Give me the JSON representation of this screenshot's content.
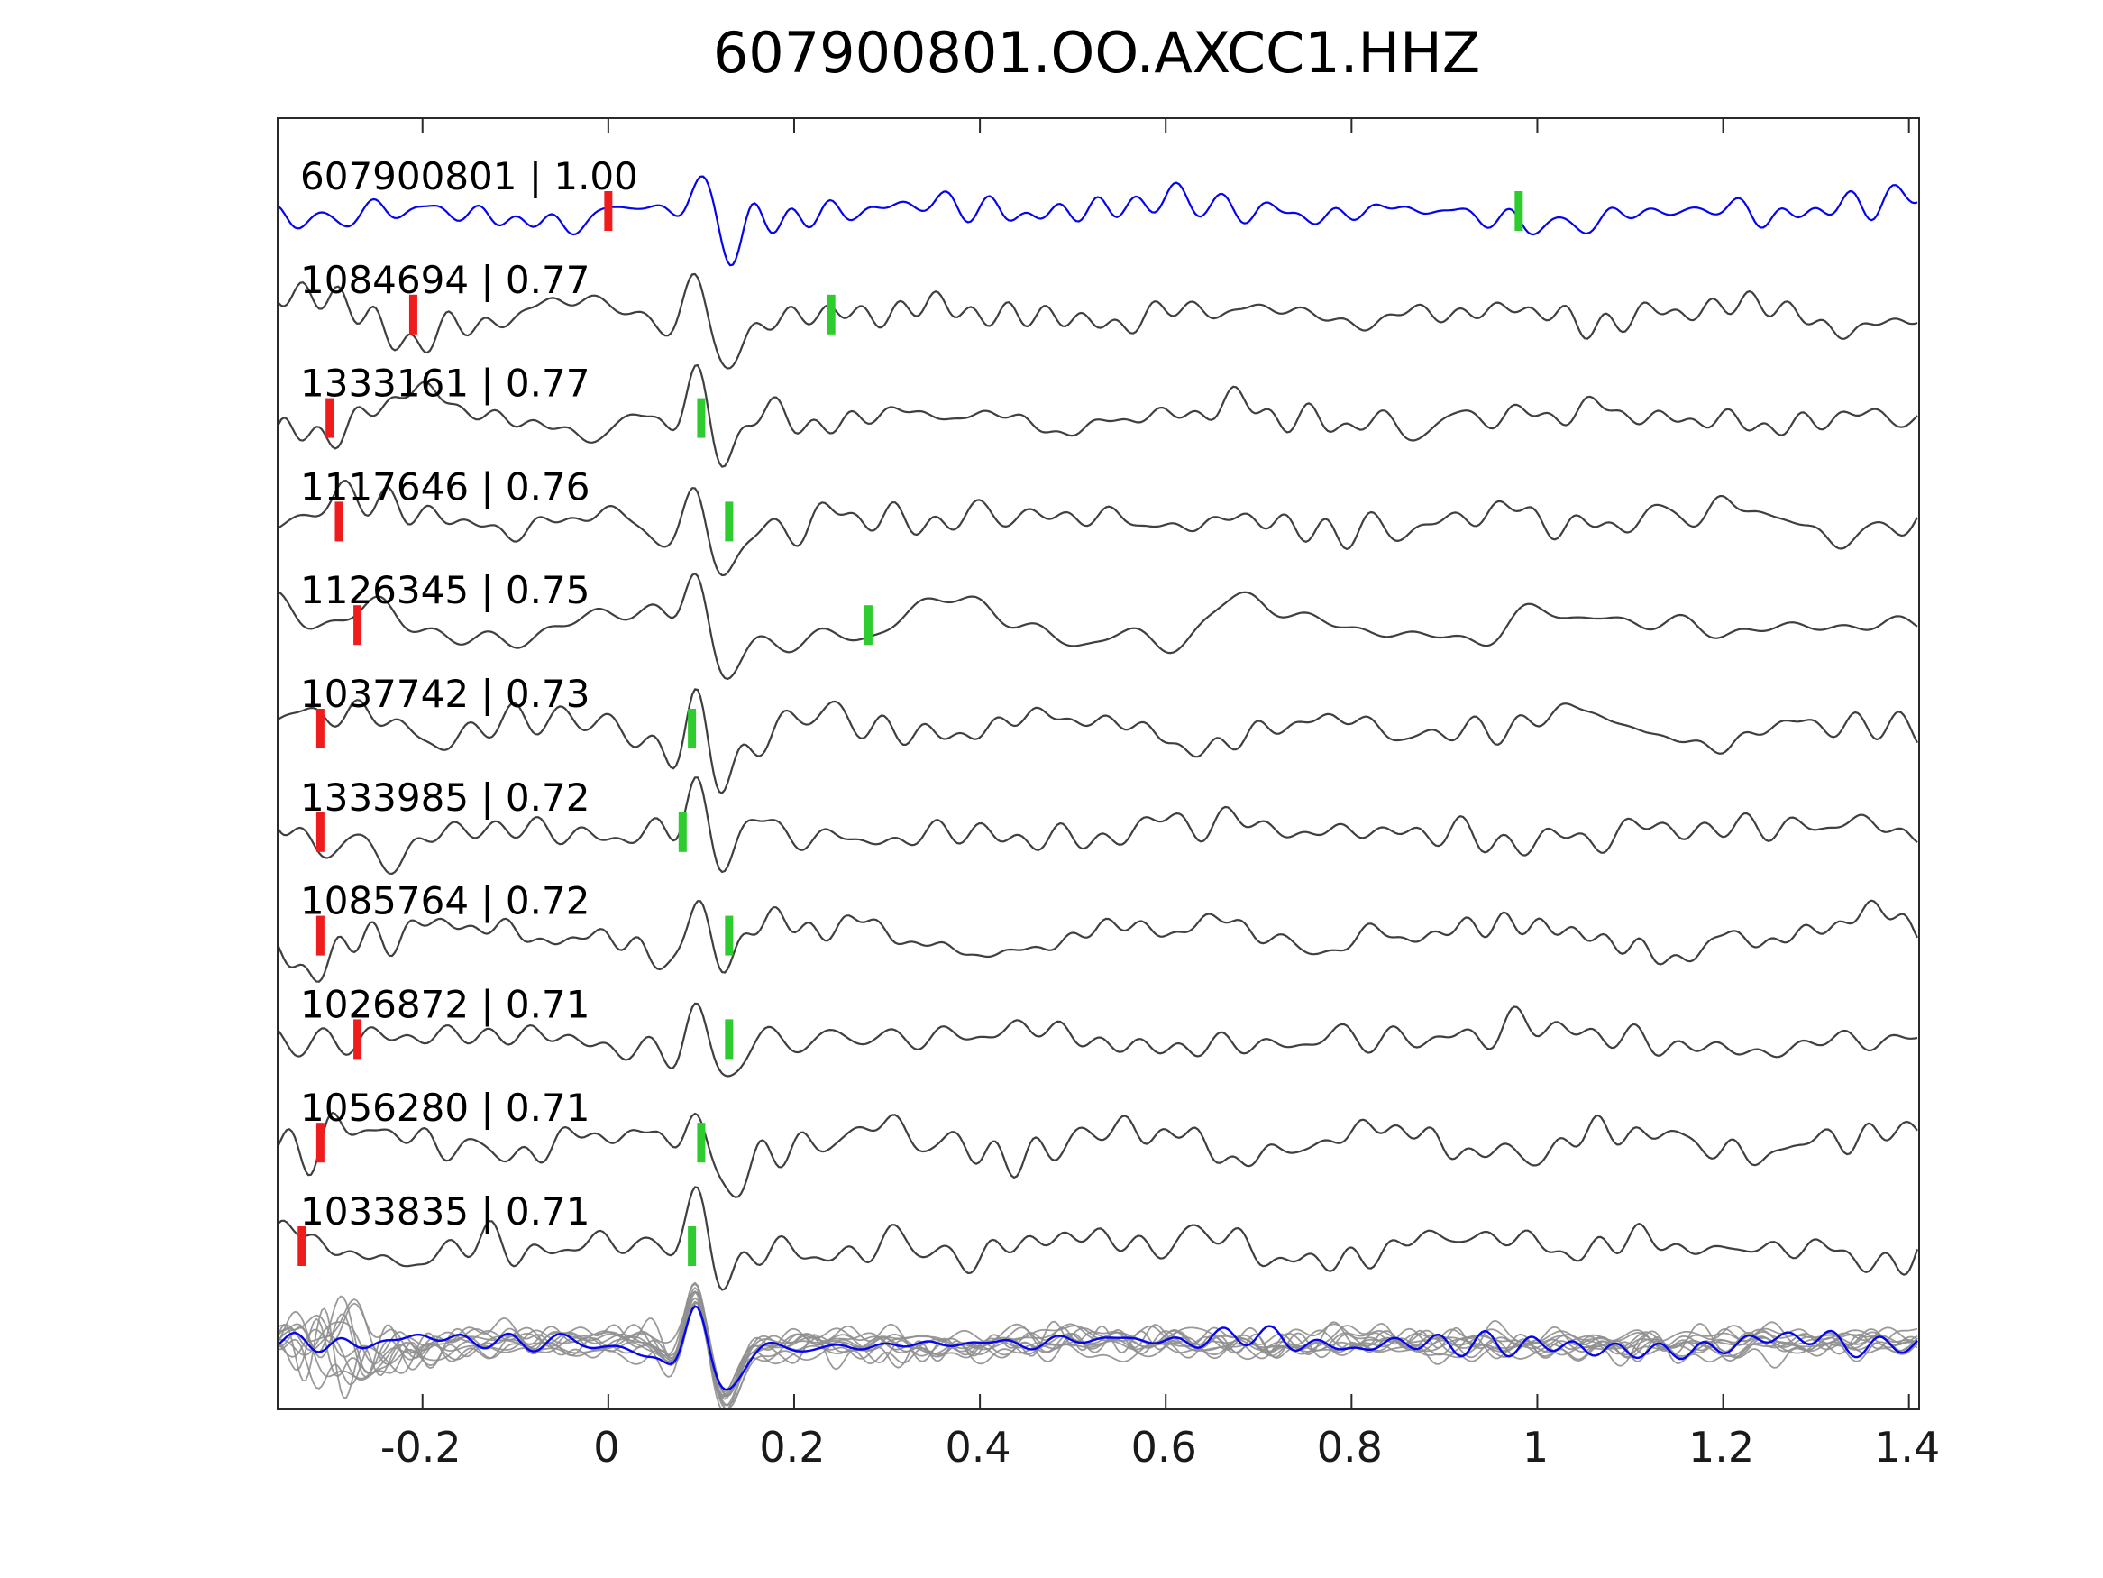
{
  "chart_data": {
    "type": "line",
    "title": "607900801.OO.AXCC1.HHZ",
    "xlabel": "",
    "ylabel": "",
    "xlim": [
      -0.355,
      1.41
    ],
    "xticks": [
      -0.2,
      0,
      0.2,
      0.4,
      0.6,
      0.8,
      1,
      1.2,
      1.4
    ],
    "xtick_labels": [
      "-0.2",
      "0",
      "0.2",
      "0.4",
      "0.6",
      "0.8",
      "1",
      "1.2",
      "1.4"
    ],
    "grid": false,
    "legend": "none",
    "colors": {
      "template_trace": "#0404ee",
      "detection_trace": "#3f3f3f",
      "overlay_trace": "#8f8f8f",
      "red_pick": "#ee1c1c",
      "green_pick": "#2ecc2e",
      "axis": "#2a2a2a"
    },
    "pulse_x": 0.095,
    "traces": [
      {
        "id": "607900801",
        "correlation": "1.00",
        "label": "607900801 | 1.00",
        "is_template": true,
        "red_pick_x": 0.0,
        "green_pick_x": 0.98
      },
      {
        "id": "1084694",
        "correlation": "0.77",
        "label": "1084694 | 0.77",
        "is_template": false,
        "red_pick_x": -0.21,
        "green_pick_x": 0.24
      },
      {
        "id": "1333161",
        "correlation": "0.77",
        "label": "1333161 | 0.77",
        "is_template": false,
        "red_pick_x": -0.3,
        "green_pick_x": 0.1
      },
      {
        "id": "1117646",
        "correlation": "0.76",
        "label": "1117646 | 0.76",
        "is_template": false,
        "red_pick_x": -0.29,
        "green_pick_x": 0.13
      },
      {
        "id": "1126345",
        "correlation": "0.75",
        "label": "1126345 | 0.75",
        "is_template": false,
        "red_pick_x": -0.27,
        "green_pick_x": 0.28
      },
      {
        "id": "1037742",
        "correlation": "0.73",
        "label": "1037742 | 0.73",
        "is_template": false,
        "red_pick_x": -0.31,
        "green_pick_x": 0.09
      },
      {
        "id": "1333985",
        "correlation": "0.72",
        "label": "1333985 | 0.72",
        "is_template": false,
        "red_pick_x": -0.31,
        "green_pick_x": 0.08
      },
      {
        "id": "1085764",
        "correlation": "0.72",
        "label": "1085764 | 0.72",
        "is_template": false,
        "red_pick_x": -0.31,
        "green_pick_x": 0.13
      },
      {
        "id": "1026872",
        "correlation": "0.71",
        "label": "1026872 | 0.71",
        "is_template": false,
        "red_pick_x": -0.27,
        "green_pick_x": 0.13
      },
      {
        "id": "1056280",
        "correlation": "0.71",
        "label": "1056280 | 0.71",
        "is_template": false,
        "red_pick_x": -0.31,
        "green_pick_x": 0.1
      },
      {
        "id": "1033835",
        "correlation": "0.71",
        "label": "1033835 | 0.71",
        "is_template": false,
        "red_pick_x": -0.33,
        "green_pick_x": 0.09
      }
    ],
    "overlay": {
      "description": "all detection waveforms stacked (gray) with template waveform (blue) aligned on the pick",
      "gray_trace_count": 11,
      "has_template_overlay": true
    }
  }
}
